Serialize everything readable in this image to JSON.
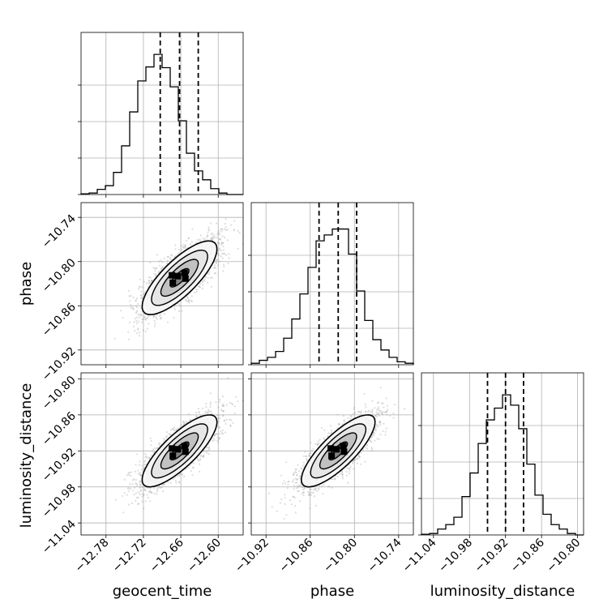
{
  "chart_data": {
    "type": "corner",
    "parameters": [
      {
        "name": "geocent_time",
        "axis_label": "geocent_time",
        "range": [
          -12.82,
          -12.56
        ],
        "ticks": [
          -12.78,
          -12.72,
          -12.66,
          -12.6
        ],
        "tick_labels": [
          "−12.78",
          "−12.72",
          "−12.66",
          "−12.60"
        ],
        "quantiles": [
          -12.693,
          -12.662,
          -12.632
        ],
        "histogram": [
          0.005,
          0.01,
          0.035,
          0.06,
          0.15,
          0.33,
          0.56,
          0.77,
          0.865,
          0.95,
          0.86,
          0.73,
          0.5,
          0.28,
          0.16,
          0.1,
          0.04,
          0.01,
          0.0,
          0.0
        ]
      },
      {
        "name": "phase",
        "axis_label": "phase",
        "range": [
          -10.94,
          -10.72
        ],
        "ticks": [
          -10.92,
          -10.86,
          -10.8,
          -10.74
        ],
        "tick_labels": [
          "−10.92",
          "−10.86",
          "−10.80",
          "−10.74"
        ],
        "quantiles": [
          -10.848,
          -10.822,
          -10.797
        ],
        "histogram": [
          0.01,
          0.03,
          0.05,
          0.09,
          0.18,
          0.31,
          0.48,
          0.66,
          0.84,
          0.88,
          0.92,
          0.92,
          0.75,
          0.5,
          0.3,
          0.17,
          0.1,
          0.05,
          0.02,
          0.01
        ]
      },
      {
        "name": "luminosity_distance",
        "axis_label": "luminosity_distance",
        "range": [
          -11.06,
          -10.79
        ],
        "ticks": [
          -11.04,
          -10.98,
          -10.92,
          -10.86,
          -10.8
        ],
        "tick_labels": [
          "−11.04",
          "−10.98",
          "−10.92",
          "−10.86",
          "−10.80"
        ],
        "quantiles": [
          -10.95,
          -10.92,
          -10.89
        ],
        "histogram": [
          0.005,
          0.01,
          0.04,
          0.07,
          0.12,
          0.26,
          0.42,
          0.62,
          0.78,
          0.86,
          0.95,
          0.88,
          0.72,
          0.48,
          0.27,
          0.14,
          0.07,
          0.04,
          0.01,
          0.0
        ]
      }
    ],
    "pairs": [
      {
        "x": "geocent_time",
        "y": "phase",
        "mean": [
          -12.662,
          -10.822
        ],
        "sd": [
          0.03,
          0.025
        ],
        "rho": 0.78
      },
      {
        "x": "geocent_time",
        "y": "luminosity_distance",
        "mean": [
          -12.662,
          -10.92
        ],
        "sd": [
          0.03,
          0.03
        ],
        "rho": 0.8
      },
      {
        "x": "phase",
        "y": "luminosity_distance",
        "mean": [
          -10.822,
          -10.92
        ],
        "sd": [
          0.025,
          0.03
        ],
        "rho": 0.8
      }
    ],
    "contour_levels_sigma": [
      0.5,
      1.0,
      1.5,
      2.0
    ],
    "grid": true,
    "colors": {
      "samples": "#9e9e9e",
      "lines": "#000000",
      "grid": "#b0b0b0"
    }
  }
}
